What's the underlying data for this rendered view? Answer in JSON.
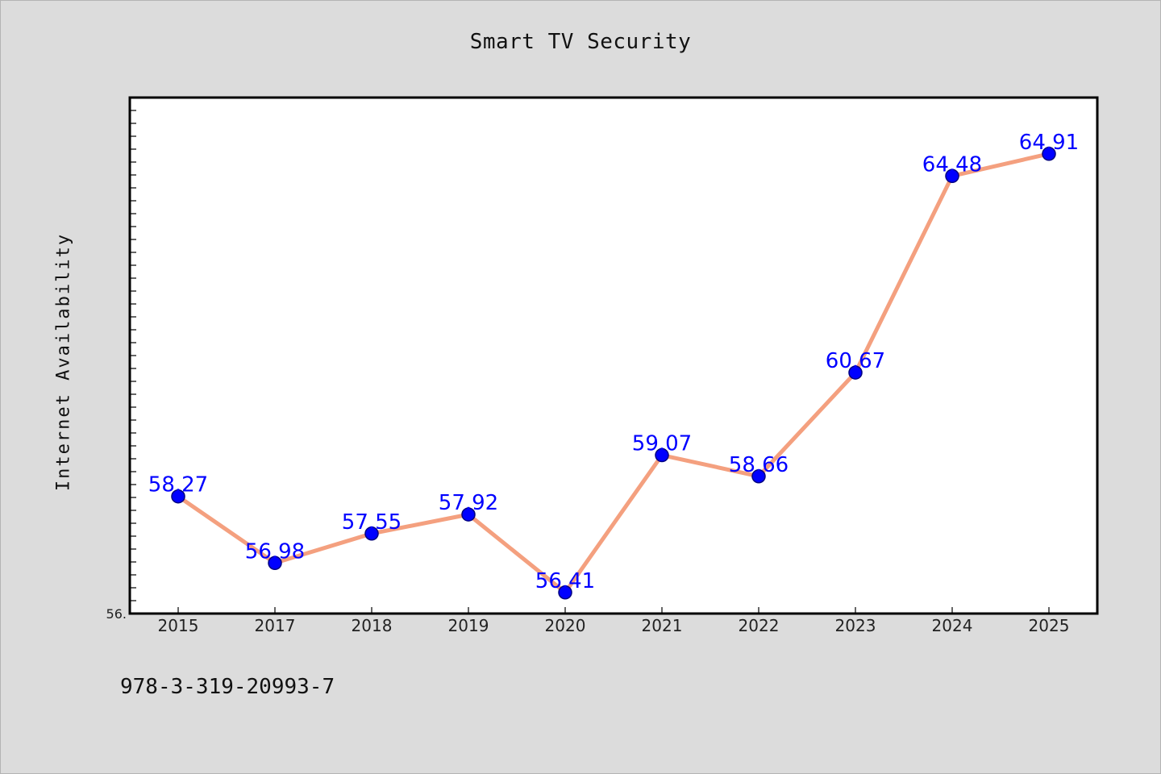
{
  "footer_text": "978-3-319-20993-7",
  "chart_data": {
    "type": "line",
    "title": "Smart TV Security",
    "xlabel": "",
    "ylabel": "Internet Availability",
    "categories": [
      "2015",
      "2017",
      "2018",
      "2019",
      "2020",
      "2021",
      "2022",
      "2023",
      "2024",
      "2025"
    ],
    "series": [
      {
        "values": [
          58.27,
          56.98,
          57.55,
          57.92,
          56.41,
          59.07,
          58.66,
          60.67,
          64.48,
          64.91
        ]
      }
    ],
    "ylim": [
      56,
      66
    ],
    "ylim_label": "56.",
    "grid": false,
    "colors": {
      "line": "#f4a07f",
      "marker": "#0000ff",
      "marker_edge": "#000080",
      "data_label": "#0000ff",
      "plot_background": "#ffffff",
      "figure_background": "#dcdcdc"
    }
  }
}
